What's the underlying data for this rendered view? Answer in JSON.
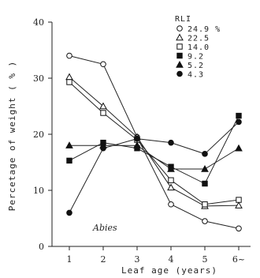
{
  "chart_data": {
    "type": "line",
    "xlabel": "Leaf age (years)",
    "ylabel": "Percetage of weight ( % )",
    "categories": [
      "1",
      "2",
      "3",
      "4",
      "5",
      "6~"
    ],
    "ylim": [
      0,
      40
    ],
    "yticks": [
      "0",
      "10",
      "20",
      "30",
      "40"
    ],
    "annotation": "Abies",
    "legend_title": "RLI",
    "legend_position": "top-right",
    "grid": false,
    "series": [
      {
        "name": "24.9 %",
        "marker": "circle-open",
        "values": [
          34.0,
          32.5,
          19.5,
          7.5,
          4.5,
          3.2
        ]
      },
      {
        "name": "22.5",
        "marker": "triangle-open",
        "values": [
          30.2,
          25.0,
          19.5,
          10.5,
          7.2,
          7.3
        ]
      },
      {
        "name": "14.0",
        "marker": "square-open",
        "values": [
          29.3,
          23.8,
          19.0,
          11.8,
          7.5,
          8.3
        ]
      },
      {
        "name": "9.2",
        "marker": "square-filled",
        "values": [
          15.3,
          18.5,
          17.5,
          14.2,
          11.2,
          23.3
        ]
      },
      {
        "name": "5.2",
        "marker": "triangle-filled",
        "values": [
          18.0,
          18.0,
          18.0,
          13.8,
          13.8,
          17.5
        ]
      },
      {
        "name": "4.3",
        "marker": "circle-filled",
        "values": [
          6.0,
          17.5,
          19.2,
          18.5,
          16.5,
          22.2
        ]
      }
    ]
  }
}
